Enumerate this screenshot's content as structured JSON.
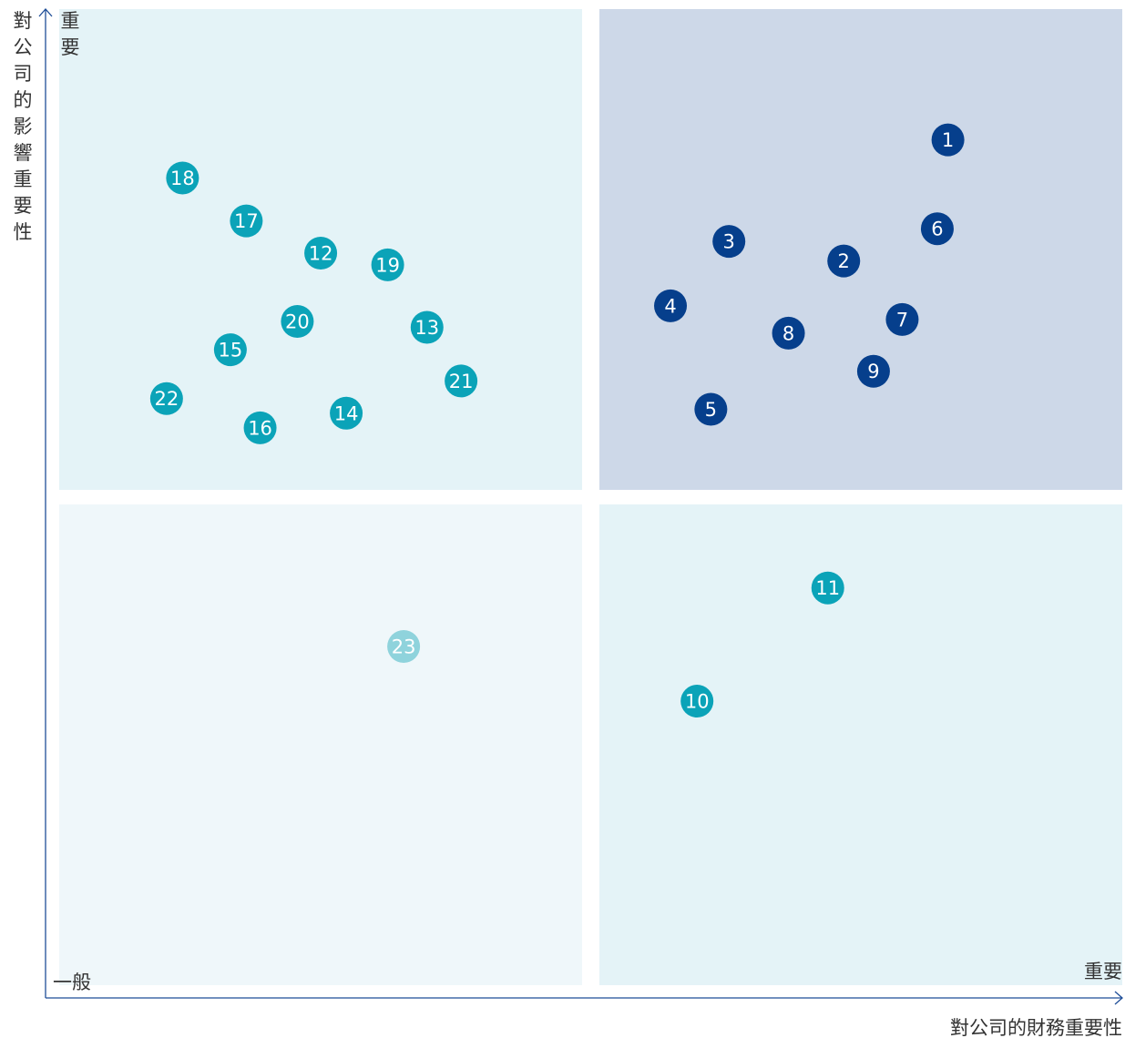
{
  "chart_data": {
    "type": "scatter",
    "title": "",
    "xlabel": "對公司的財務重要性",
    "ylabel": "對公司的影響重要性",
    "x_high_label": "重要",
    "y_high_label": "重要",
    "low_label": "一般",
    "xlim": [
      0,
      100
    ],
    "ylim": [
      0,
      100
    ],
    "grid": false,
    "legend": "none",
    "colors": {
      "axis": "#1f4e98",
      "quadrant_top_left": "#e4f3f7",
      "quadrant_top_right": "#cdd8e8",
      "quadrant_bottom_left": "#eff7fa",
      "quadrant_bottom_right": "#e4f3f7",
      "dot_dark": "#063f8c",
      "dot_teal": "#0ba3b8",
      "dot_light": "#8fd3dc"
    },
    "points": [
      {
        "label": "1",
        "x": 83.6,
        "y": 86.6,
        "group": "dark"
      },
      {
        "label": "2",
        "x": 73.8,
        "y": 74.2,
        "group": "dark"
      },
      {
        "label": "3",
        "x": 63.0,
        "y": 76.2,
        "group": "dark"
      },
      {
        "label": "4",
        "x": 57.5,
        "y": 69.6,
        "group": "dark"
      },
      {
        "label": "5",
        "x": 61.3,
        "y": 59.0,
        "group": "dark"
      },
      {
        "label": "6",
        "x": 82.6,
        "y": 77.5,
        "group": "dark"
      },
      {
        "label": "7",
        "x": 79.3,
        "y": 68.2,
        "group": "dark"
      },
      {
        "label": "8",
        "x": 68.6,
        "y": 66.8,
        "group": "dark"
      },
      {
        "label": "9",
        "x": 76.6,
        "y": 62.9,
        "group": "dark"
      },
      {
        "label": "10",
        "x": 60.0,
        "y": 29.1,
        "group": "teal"
      },
      {
        "label": "11",
        "x": 72.3,
        "y": 40.7,
        "group": "teal"
      },
      {
        "label": "12",
        "x": 24.6,
        "y": 75.0,
        "group": "teal"
      },
      {
        "label": "13",
        "x": 34.6,
        "y": 67.4,
        "group": "teal"
      },
      {
        "label": "14",
        "x": 27.0,
        "y": 58.6,
        "group": "teal"
      },
      {
        "label": "15",
        "x": 16.1,
        "y": 65.1,
        "group": "teal"
      },
      {
        "label": "16",
        "x": 18.9,
        "y": 57.1,
        "group": "teal"
      },
      {
        "label": "17",
        "x": 17.6,
        "y": 78.3,
        "group": "teal"
      },
      {
        "label": "18",
        "x": 11.6,
        "y": 82.7,
        "group": "teal"
      },
      {
        "label": "19",
        "x": 30.9,
        "y": 73.8,
        "group": "teal"
      },
      {
        "label": "20",
        "x": 22.4,
        "y": 68.0,
        "group": "teal"
      },
      {
        "label": "21",
        "x": 37.8,
        "y": 61.9,
        "group": "teal"
      },
      {
        "label": "22",
        "x": 10.1,
        "y": 60.1,
        "group": "teal"
      },
      {
        "label": "23",
        "x": 32.4,
        "y": 34.7,
        "group": "light"
      }
    ]
  }
}
